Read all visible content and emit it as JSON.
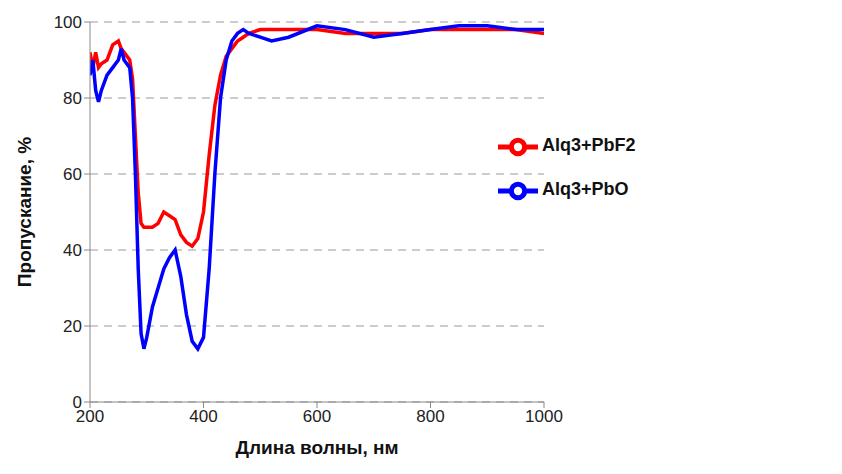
{
  "chart_data": {
    "type": "line",
    "x_label": "Длина волны, нм",
    "y_label": "Пропускание, %",
    "x": [
      200,
      205,
      210,
      215,
      220,
      230,
      240,
      250,
      255,
      260,
      270,
      275,
      280,
      285,
      290,
      295,
      300,
      310,
      320,
      330,
      340,
      350,
      360,
      370,
      380,
      390,
      400,
      410,
      420,
      430,
      440,
      450,
      460,
      470,
      480,
      500,
      520,
      550,
      600,
      650,
      700,
      750,
      800,
      850,
      900,
      950,
      1000
    ],
    "series": [
      {
        "name": "Alq3+PbF2",
        "color": "#ff0000",
        "values": [
          92,
          88,
          92,
          88,
          89,
          90,
          94,
          95,
          93,
          92,
          90,
          85,
          70,
          55,
          47,
          46,
          46,
          46,
          47,
          50,
          49,
          48,
          44,
          42,
          41,
          43,
          50,
          65,
          78,
          86,
          91,
          93,
          95,
          96,
          97,
          98,
          98,
          98,
          98,
          97,
          97,
          97,
          98,
          98,
          98,
          98,
          97
        ]
      },
      {
        "name": "Alq3+PbO",
        "color": "#0000ff",
        "values": [
          86,
          90,
          82,
          79,
          82,
          86,
          88,
          90,
          93,
          90,
          88,
          80,
          60,
          35,
          18,
          14,
          17,
          25,
          30,
          35,
          38,
          40,
          33,
          23,
          16,
          14,
          17,
          35,
          60,
          80,
          90,
          95,
          97,
          98,
          97,
          96,
          95,
          96,
          99,
          98,
          96,
          97,
          98,
          99,
          99,
          98,
          98
        ]
      }
    ],
    "xlim": [
      200,
      1000
    ],
    "xticks": [
      200,
      400,
      600,
      800,
      1000
    ],
    "ylim": [
      0,
      100
    ],
    "yticks": [
      0,
      20,
      40,
      60,
      80,
      100
    ],
    "grid": true,
    "legend": "right"
  }
}
